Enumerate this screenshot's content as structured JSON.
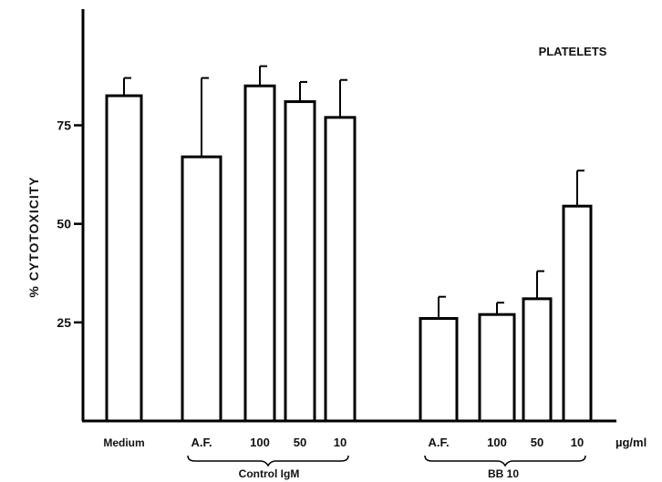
{
  "chart_data": {
    "type": "bar",
    "title": "PLATELETS",
    "ylabel": "% CYTOTOXICITY",
    "xunit": "µg/ml",
    "ylim": [
      0,
      98
    ],
    "yticks": [
      25,
      50,
      75
    ],
    "grid": false,
    "bars": [
      {
        "label": "Medium",
        "value": 82.5,
        "error": 4.5
      },
      {
        "label": "A.F.",
        "value": 67,
        "error": 20
      },
      {
        "label": "100",
        "value": 85,
        "error": 5
      },
      {
        "label": "50",
        "value": 81,
        "error": 5
      },
      {
        "label": "10",
        "value": 77,
        "error": 9.5
      },
      {
        "label": "A.F.",
        "value": 26,
        "error": 5.5
      },
      {
        "label": "100",
        "value": 27,
        "error": 3
      },
      {
        "label": "50",
        "value": 31,
        "error": 7
      },
      {
        "label": "10",
        "value": 54.5,
        "error": 9
      }
    ],
    "groups": [
      {
        "label": "Control IgM"
      },
      {
        "label": "BB 10"
      }
    ]
  }
}
